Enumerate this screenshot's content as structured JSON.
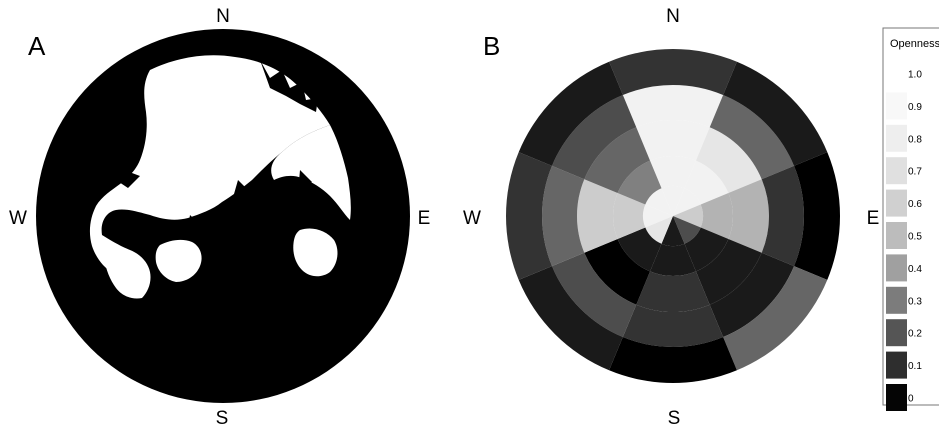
{
  "panel_a": {
    "label": "A",
    "compass": {
      "n": "N",
      "e": "E",
      "s": "S",
      "w": "W"
    }
  },
  "panel_b": {
    "label": "B",
    "compass": {
      "n": "N",
      "e": "E",
      "s": "S",
      "w": "W"
    },
    "rings": 5,
    "sectors": 8,
    "sector_order": [
      "N",
      "NE",
      "E",
      "SE",
      "S",
      "SW",
      "W",
      "NW"
    ],
    "openness_grid": [
      [
        0.2,
        0.1,
        0.0,
        0.4,
        0.0,
        0.1,
        0.2,
        0.1
      ],
      [
        0.95,
        0.4,
        0.2,
        0.1,
        0.2,
        0.3,
        0.4,
        0.3
      ],
      [
        0.95,
        0.9,
        0.7,
        0.1,
        0.2,
        0.0,
        0.8,
        0.4
      ],
      [
        0.95,
        0.95,
        0.7,
        0.1,
        0.1,
        0.1,
        0.8,
        0.5
      ],
      [
        0.95,
        0.95,
        0.8,
        0.3,
        0.1,
        0.9,
        0.95,
        0.95
      ]
    ]
  },
  "legend": {
    "title": "Openness",
    "items": [
      {
        "label": "1.0",
        "color": "#ffffff"
      },
      {
        "label": "0.9",
        "color": "#f8f8f8"
      },
      {
        "label": "0.8",
        "color": "#eeeeee"
      },
      {
        "label": "0.7",
        "color": "#e0e0e0"
      },
      {
        "label": "0.6",
        "color": "#d0d0d0"
      },
      {
        "label": "0.5",
        "color": "#bcbcbc"
      },
      {
        "label": "0.4",
        "color": "#a0a0a0"
      },
      {
        "label": "0.3",
        "color": "#7c7c7c"
      },
      {
        "label": "0.2",
        "color": "#555555"
      },
      {
        "label": "0.1",
        "color": "#2e2e2e"
      },
      {
        "label": "0",
        "color": "#050505"
      }
    ]
  }
}
